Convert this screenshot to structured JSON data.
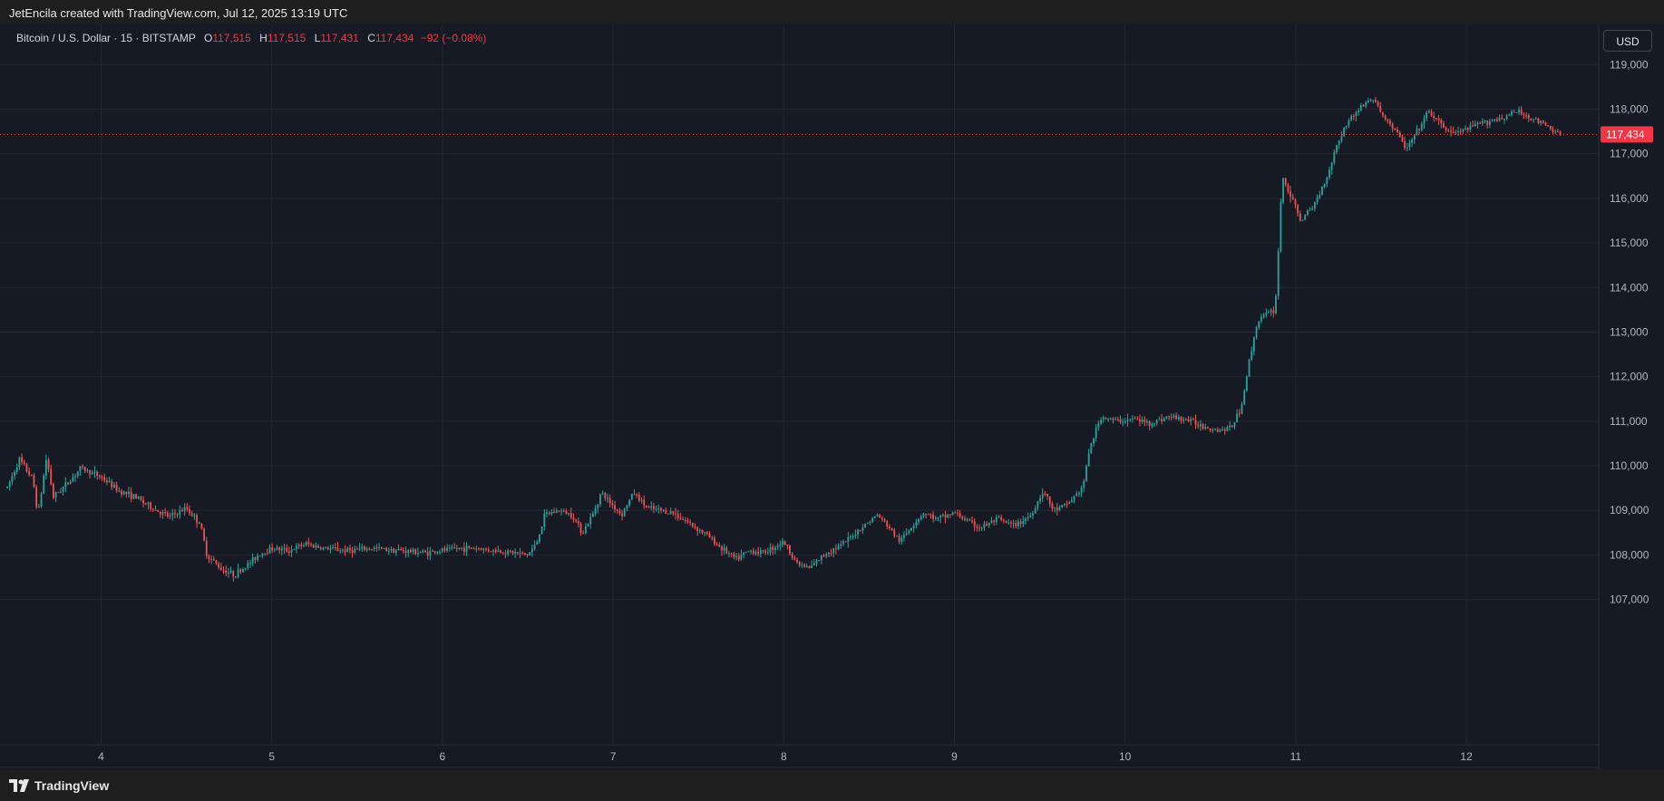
{
  "header": {
    "credit": "JetEncila created with TradingView.com, Jul 12, 2025 13:19 UTC"
  },
  "legend": {
    "symbol": "Bitcoin / U.S. Dollar · 15 · BITSTAMP",
    "open_label": "O",
    "open_value": "117,515",
    "high_label": "H",
    "high_value": "117,515",
    "low_label": "L",
    "low_value": "117,431",
    "close_label": "C",
    "close_value": "117,434",
    "change": "−92 (−0.08%)"
  },
  "currency_button": "USD",
  "footer": {
    "brand": "TradingView"
  },
  "colors": {
    "background": "#161a25",
    "up": "#26a69a",
    "down": "#ef5350",
    "grid": "#242733",
    "price_line": "#ef5350",
    "price_tag": "#f23645"
  },
  "chart_data": {
    "type": "candlestick",
    "title": "Bitcoin / U.S. Dollar · 15 · BITSTAMP",
    "x_ticks": [
      "4",
      "5",
      "6",
      "7",
      "8",
      "9",
      "10",
      "11",
      "12"
    ],
    "x_tick_days": [
      4,
      5,
      6,
      7,
      8,
      9,
      10,
      11,
      12
    ],
    "x_range_days": [
      3.45,
      12.77
    ],
    "y_ticks": [
      "107,000",
      "108,000",
      "109,000",
      "110,000",
      "111,000",
      "112,000",
      "113,000",
      "114,000",
      "115,000",
      "116,000",
      "117,000",
      "118,000",
      "119,000"
    ],
    "y_tick_values": [
      107000,
      108000,
      109000,
      110000,
      111000,
      112000,
      113000,
      114000,
      115000,
      116000,
      117000,
      118000,
      119000
    ],
    "ylim": [
      106200,
      119900
    ],
    "last_price": 117434,
    "last_price_label": "117,434",
    "grid": true,
    "price_path": [
      [
        3.45,
        109500
      ],
      [
        3.52,
        110150
      ],
      [
        3.6,
        109700
      ],
      [
        3.63,
        108900
      ],
      [
        3.68,
        110200
      ],
      [
        3.72,
        109300
      ],
      [
        3.8,
        109600
      ],
      [
        3.88,
        109950
      ],
      [
        4.0,
        109750
      ],
      [
        4.1,
        109450
      ],
      [
        4.2,
        109300
      ],
      [
        4.3,
        109050
      ],
      [
        4.4,
        108850
      ],
      [
        4.5,
        109050
      ],
      [
        4.58,
        108700
      ],
      [
        4.62,
        108000
      ],
      [
        4.7,
        107700
      ],
      [
        4.78,
        107550
      ],
      [
        4.85,
        107750
      ],
      [
        4.92,
        108000
      ],
      [
        5.0,
        108150
      ],
      [
        5.1,
        108100
      ],
      [
        5.2,
        108250
      ],
      [
        5.3,
        108150
      ],
      [
        5.45,
        108100
      ],
      [
        5.6,
        108150
      ],
      [
        5.75,
        108100
      ],
      [
        5.9,
        108050
      ],
      [
        6.0,
        108100
      ],
      [
        6.1,
        108150
      ],
      [
        6.2,
        108150
      ],
      [
        6.3,
        108100
      ],
      [
        6.42,
        108050
      ],
      [
        6.5,
        108000
      ],
      [
        6.55,
        108250
      ],
      [
        6.6,
        108900
      ],
      [
        6.68,
        109000
      ],
      [
        6.76,
        108900
      ],
      [
        6.82,
        108500
      ],
      [
        6.88,
        108900
      ],
      [
        6.93,
        109400
      ],
      [
        7.0,
        109100
      ],
      [
        7.05,
        108900
      ],
      [
        7.12,
        109400
      ],
      [
        7.2,
        109050
      ],
      [
        7.35,
        108950
      ],
      [
        7.45,
        108700
      ],
      [
        7.55,
        108450
      ],
      [
        7.62,
        108200
      ],
      [
        7.72,
        107900
      ],
      [
        7.8,
        108100
      ],
      [
        7.88,
        108050
      ],
      [
        8.0,
        108300
      ],
      [
        8.08,
        107800
      ],
      [
        8.15,
        107700
      ],
      [
        8.25,
        108050
      ],
      [
        8.35,
        108250
      ],
      [
        8.45,
        108600
      ],
      [
        8.55,
        108900
      ],
      [
        8.62,
        108600
      ],
      [
        8.68,
        108300
      ],
      [
        8.76,
        108700
      ],
      [
        8.82,
        108950
      ],
      [
        8.9,
        108800
      ],
      [
        9.0,
        108950
      ],
      [
        9.08,
        108750
      ],
      [
        9.15,
        108600
      ],
      [
        9.25,
        108800
      ],
      [
        9.35,
        108650
      ],
      [
        9.45,
        108900
      ],
      [
        9.52,
        109450
      ],
      [
        9.58,
        109000
      ],
      [
        9.65,
        109100
      ],
      [
        9.75,
        109500
      ],
      [
        9.8,
        110500
      ],
      [
        9.86,
        111100
      ],
      [
        9.95,
        111000
      ],
      [
        10.05,
        111050
      ],
      [
        10.15,
        110950
      ],
      [
        10.25,
        111100
      ],
      [
        10.35,
        111050
      ],
      [
        10.45,
        110900
      ],
      [
        10.55,
        110800
      ],
      [
        10.62,
        110850
      ],
      [
        10.68,
        111300
      ],
      [
        10.73,
        112400
      ],
      [
        10.78,
        113300
      ],
      [
        10.83,
        113400
      ],
      [
        10.88,
        113500
      ],
      [
        10.92,
        116500
      ],
      [
        10.97,
        116050
      ],
      [
        11.03,
        115500
      ],
      [
        11.1,
        115800
      ],
      [
        11.18,
        116450
      ],
      [
        11.24,
        117200
      ],
      [
        11.3,
        117700
      ],
      [
        11.38,
        118050
      ],
      [
        11.45,
        118250
      ],
      [
        11.52,
        117800
      ],
      [
        11.58,
        117550
      ],
      [
        11.65,
        117100
      ],
      [
        11.72,
        117550
      ],
      [
        11.78,
        117950
      ],
      [
        11.85,
        117650
      ],
      [
        11.92,
        117450
      ],
      [
        12.0,
        117550
      ],
      [
        12.1,
        117700
      ],
      [
        12.2,
        117800
      ],
      [
        12.3,
        117950
      ],
      [
        12.38,
        117800
      ],
      [
        12.43,
        117700
      ],
      [
        12.5,
        117550
      ],
      [
        12.55,
        117434
      ]
    ]
  }
}
